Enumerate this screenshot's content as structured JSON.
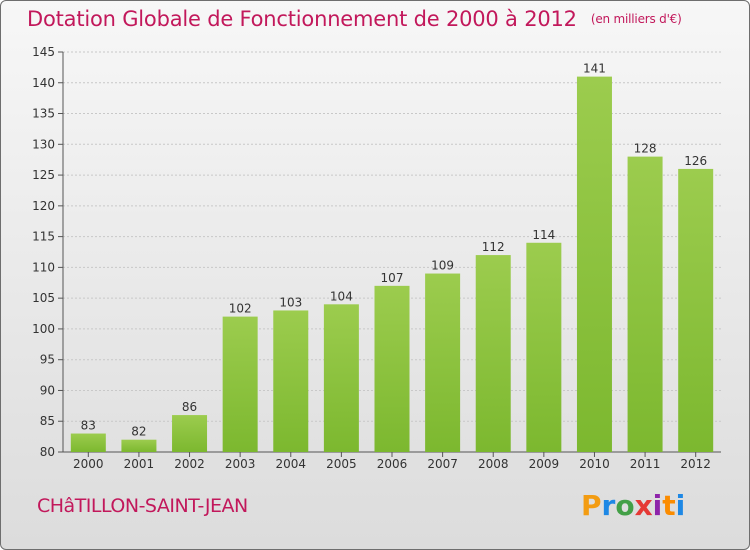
{
  "chart_data": {
    "type": "bar",
    "title": "Dotation Globale de Fonctionnement de 2000 à 2012",
    "subtitle": "(en milliers d'€)",
    "xlabel": "",
    "ylabel": "",
    "categories": [
      "2000",
      "2001",
      "2002",
      "2003",
      "2004",
      "2005",
      "2006",
      "2007",
      "2008",
      "2009",
      "2010",
      "2011",
      "2012"
    ],
    "values": [
      83,
      82,
      86,
      102,
      103,
      104,
      107,
      109,
      112,
      114,
      141,
      128,
      126
    ],
    "ylim": [
      80,
      145
    ],
    "yticks": [
      80,
      85,
      90,
      95,
      100,
      105,
      110,
      115,
      120,
      125,
      130,
      135,
      140,
      145
    ],
    "grid": true,
    "bar_color": "#7cb82f",
    "bar_color_light": "#9ccc4e"
  },
  "footer": {
    "place": "CHâTILLON-SAINT-JEAN",
    "brand": "Proxiti"
  },
  "colors": {
    "title": "#c2185b",
    "brand_letters": [
      "#f39c12",
      "#1e88e5",
      "#43a047",
      "#e53935",
      "#8e24aa",
      "#fb8c00",
      "#1e88e5"
    ]
  }
}
